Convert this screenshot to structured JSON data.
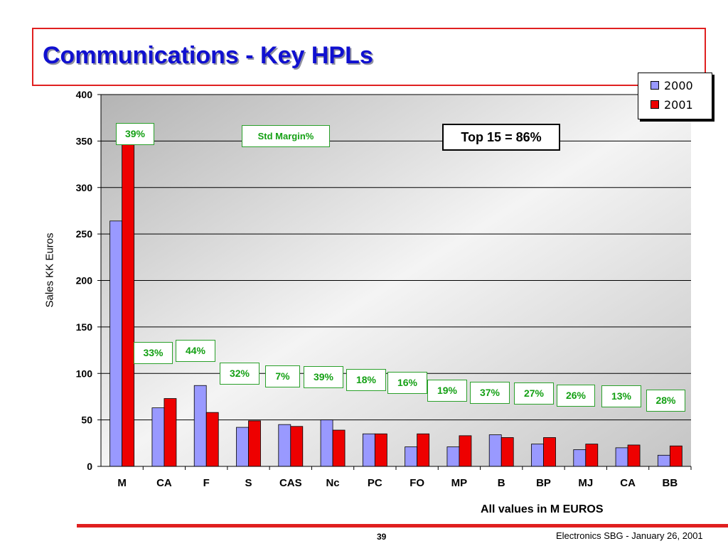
{
  "slide": {
    "title": "Communications - Key HPLs",
    "top15": "Top 15 = 86%",
    "footnote": "All values in M EUROS",
    "page_number": "39",
    "footer": "Electronics SBG  - January 26, 2001",
    "std_margin_label": "Std Margin%"
  },
  "colors": {
    "series_2000": "#9999ff",
    "series_2001": "#ee0000",
    "title": "#1010d0",
    "accent_red": "#e02020",
    "annotation_green": "#14a014"
  },
  "chart_data": {
    "type": "bar",
    "ylabel": "Sales KK Euros",
    "ylim": [
      0,
      400
    ],
    "yticks": [
      0,
      50,
      100,
      150,
      200,
      250,
      300,
      350,
      400
    ],
    "grid": true,
    "legend_position": "top-right",
    "categories": [
      "M",
      "CA",
      "F",
      "S",
      "CAS",
      "Nc",
      "PC",
      "FO",
      "MP",
      "B",
      "BP",
      "MJ",
      "CA",
      "BB"
    ],
    "series": [
      {
        "name": "2000",
        "values": [
          264,
          63,
          87,
          42,
          45,
          50,
          35,
          21,
          21,
          34,
          24,
          18,
          20,
          12
        ]
      },
      {
        "name": "2001",
        "values": [
          350,
          73,
          58,
          49,
          43,
          39,
          35,
          35,
          33,
          31,
          31,
          24,
          23,
          22
        ]
      }
    ],
    "margins": [
      "39%",
      "33%",
      "44%",
      "32%",
      "7%",
      "39%",
      "18%",
      "16%",
      "19%",
      "37%",
      "27%",
      "26%",
      "13%",
      "28%"
    ]
  }
}
